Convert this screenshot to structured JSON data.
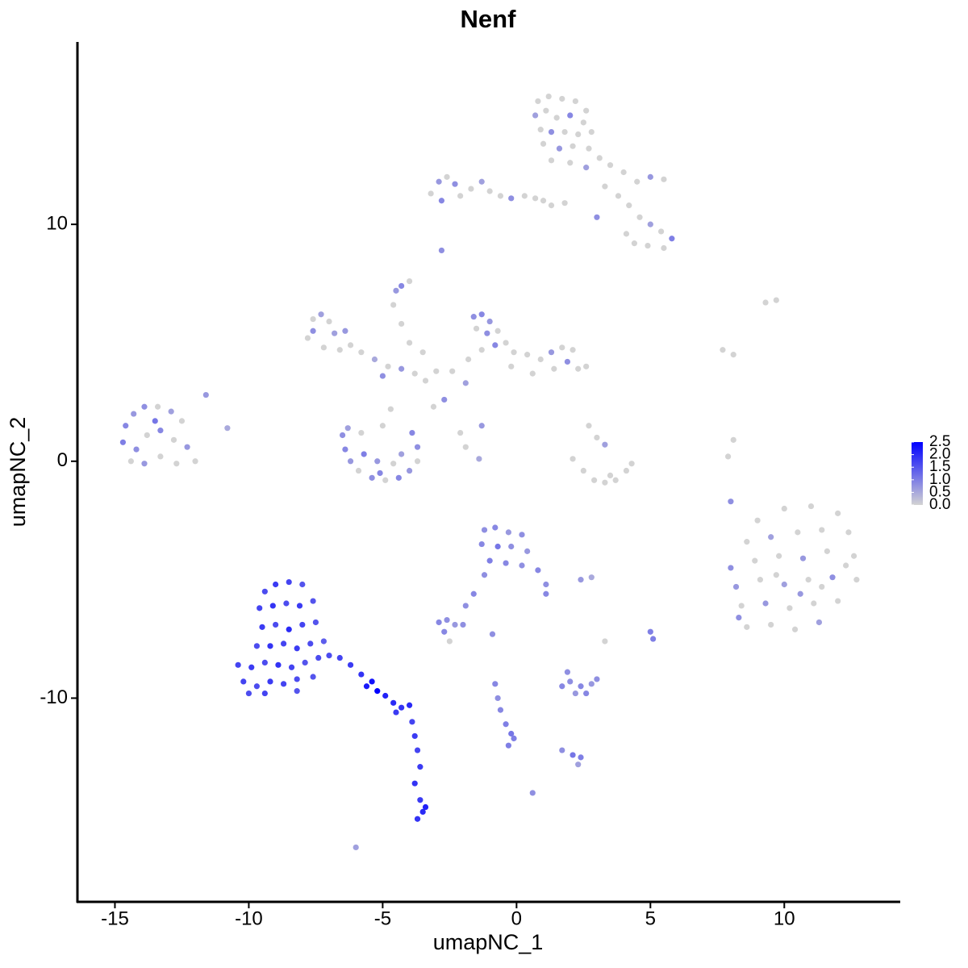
{
  "chart_data": {
    "type": "scatter",
    "title": "Nenf",
    "xlabel": "umapNC_1",
    "ylabel": "umapNC_2",
    "xlim": [
      -16.4,
      14.3
    ],
    "ylim": [
      -18.6,
      17.7
    ],
    "xticks": [
      -15,
      -10,
      -5,
      0,
      5,
      10
    ],
    "yticks": [
      -10,
      0,
      10
    ],
    "point_fields": [
      "x",
      "y",
      "expression"
    ],
    "color_scale": {
      "low": "#d3d3d3",
      "high": "#0000ff",
      "lim": [
        0,
        2.5
      ],
      "ticks": [
        {
          "value": 0,
          "label": "0.0"
        },
        0.5,
        {
          "value": 1,
          "label": "1.0"
        },
        1.5,
        {
          "value": 2,
          "label": "2.0"
        },
        2.5
      ]
    },
    "points": [
      [
        0.8,
        15.2,
        0
      ],
      [
        1.2,
        15.4,
        0
      ],
      [
        1.7,
        15.3,
        0
      ],
      [
        2.2,
        15.2,
        0
      ],
      [
        2.6,
        14.8,
        0
      ],
      [
        0.7,
        14.6,
        0.6
      ],
      [
        1.1,
        14.8,
        0
      ],
      [
        1.5,
        14.5,
        0
      ],
      [
        2.0,
        14.6,
        0.9
      ],
      [
        2.5,
        14.3,
        0
      ],
      [
        0.9,
        14.0,
        0
      ],
      [
        1.3,
        13.9,
        0.8
      ],
      [
        1.8,
        13.9,
        0
      ],
      [
        2.3,
        13.8,
        0
      ],
      [
        2.8,
        13.9,
        0
      ],
      [
        1.0,
        13.4,
        0
      ],
      [
        1.6,
        13.2,
        0.7
      ],
      [
        2.1,
        13.3,
        0
      ],
      [
        2.7,
        13.2,
        0
      ],
      [
        3.1,
        12.8,
        0
      ],
      [
        1.3,
        12.7,
        0
      ],
      [
        2.0,
        12.6,
        0
      ],
      [
        2.6,
        12.4,
        0.6
      ],
      [
        3.5,
        12.5,
        0
      ],
      [
        4.0,
        12.2,
        0
      ],
      [
        4.5,
        11.8,
        0
      ],
      [
        5.0,
        12.0,
        0.7
      ],
      [
        5.5,
        11.9,
        0
      ],
      [
        3.3,
        11.6,
        0
      ],
      [
        3.8,
        11.2,
        0
      ],
      [
        4.2,
        10.8,
        0
      ],
      [
        4.6,
        10.3,
        0
      ],
      [
        5.0,
        10.0,
        0.6
      ],
      [
        5.4,
        9.7,
        0
      ],
      [
        5.8,
        9.4,
        1.0
      ],
      [
        4.1,
        9.6,
        0
      ],
      [
        4.4,
        9.2,
        0
      ],
      [
        4.9,
        9.1,
        0
      ],
      [
        5.5,
        9.0,
        0
      ],
      [
        3.0,
        10.3,
        0.8
      ],
      [
        -3.2,
        11.3,
        0
      ],
      [
        -2.9,
        11.8,
        0.7
      ],
      [
        -2.6,
        12.0,
        0
      ],
      [
        -2.3,
        11.7,
        0.8
      ],
      [
        -2.8,
        11.0,
        0.9
      ],
      [
        -2.1,
        11.2,
        0
      ],
      [
        -1.7,
        11.5,
        0
      ],
      [
        -1.3,
        11.8,
        0.6
      ],
      [
        -1.0,
        11.4,
        0
      ],
      [
        -0.6,
        11.2,
        0
      ],
      [
        -0.2,
        11.1,
        0.8
      ],
      [
        0.3,
        11.2,
        0
      ],
      [
        0.7,
        11.1,
        0
      ],
      [
        1.0,
        11.0,
        0
      ],
      [
        1.3,
        10.8,
        0
      ],
      [
        1.8,
        10.9,
        0
      ],
      [
        -2.8,
        8.9,
        0.8
      ],
      [
        -4.3,
        7.4,
        0.9
      ],
      [
        -4.5,
        7.2,
        0.7
      ],
      [
        -4.0,
        7.6,
        0
      ],
      [
        9.3,
        6.7,
        0
      ],
      [
        9.7,
        6.8,
        0
      ],
      [
        7.7,
        4.7,
        0
      ],
      [
        8.1,
        4.5,
        0
      ],
      [
        -11.6,
        2.8,
        0.7
      ],
      [
        -10.8,
        1.4,
        0.5
      ],
      [
        8.1,
        0.9,
        0
      ],
      [
        7.9,
        0.2,
        0
      ],
      [
        8.0,
        -1.7,
        0.8
      ],
      [
        -6.0,
        -16.3,
        0.6
      ],
      [
        0.6,
        -14.0,
        0.8
      ],
      [
        -7.6,
        6.0,
        0
      ],
      [
        -7.3,
        6.2,
        0.6
      ],
      [
        -7.0,
        5.9,
        0
      ],
      [
        -7.6,
        5.5,
        0.8
      ],
      [
        -7.8,
        5.2,
        0
      ],
      [
        -6.8,
        5.4,
        0.6
      ],
      [
        -7.2,
        4.8,
        0
      ],
      [
        -6.6,
        4.7,
        0
      ],
      [
        -6.2,
        4.9,
        0
      ],
      [
        -6.4,
        5.5,
        0.7
      ],
      [
        -5.8,
        4.6,
        0
      ],
      [
        -5.3,
        4.3,
        0.5
      ],
      [
        -4.8,
        4.0,
        0
      ],
      [
        -5.0,
        3.6,
        0.8
      ],
      [
        -4.3,
        3.9,
        0.7
      ],
      [
        -3.8,
        3.7,
        0
      ],
      [
        -3.4,
        3.4,
        0
      ],
      [
        -3.0,
        3.8,
        0
      ],
      [
        -4.6,
        6.6,
        0
      ],
      [
        -4.3,
        5.8,
        0
      ],
      [
        -4.0,
        5.0,
        0
      ],
      [
        -3.5,
        4.6,
        0
      ],
      [
        -1.6,
        6.1,
        0.8
      ],
      [
        -1.3,
        6.2,
        0.9
      ],
      [
        -1.0,
        5.9,
        0.7
      ],
      [
        -1.5,
        5.6,
        0
      ],
      [
        -1.1,
        5.4,
        0.8
      ],
      [
        -0.7,
        5.5,
        0
      ],
      [
        -0.8,
        4.9,
        0.9
      ],
      [
        -0.4,
        5.0,
        0
      ],
      [
        -1.3,
        4.7,
        0
      ],
      [
        -0.1,
        4.6,
        0
      ],
      [
        0.4,
        4.5,
        0
      ],
      [
        0.9,
        4.3,
        0
      ],
      [
        1.3,
        4.6,
        0.7
      ],
      [
        1.7,
        4.8,
        0
      ],
      [
        2.1,
        4.7,
        0
      ],
      [
        1.9,
        4.2,
        0.8
      ],
      [
        2.3,
        3.9,
        0
      ],
      [
        2.6,
        4.0,
        0
      ],
      [
        1.4,
        3.9,
        0
      ],
      [
        0.6,
        3.7,
        0
      ],
      [
        -0.2,
        4.0,
        0
      ],
      [
        -1.8,
        4.3,
        0
      ],
      [
        -2.4,
        3.8,
        0
      ],
      [
        -1.9,
        3.3,
        0.6
      ],
      [
        -2.7,
        2.6,
        0.8
      ],
      [
        -3.1,
        2.3,
        0
      ],
      [
        -2.1,
        1.2,
        0
      ],
      [
        -1.3,
        1.5,
        0.7
      ],
      [
        -1.9,
        0.6,
        0
      ],
      [
        -1.4,
        0.1,
        0.5
      ],
      [
        -6.5,
        1.1,
        0.8
      ],
      [
        -6.4,
        0.5,
        0.9
      ],
      [
        -6.2,
        0.0,
        0.7
      ],
      [
        -6.3,
        1.4,
        0.6
      ],
      [
        -5.9,
        -0.4,
        0
      ],
      [
        -5.4,
        -0.7,
        0.8
      ],
      [
        -4.9,
        -0.8,
        0
      ],
      [
        -4.4,
        -0.7,
        0.9
      ],
      [
        -4.0,
        -0.4,
        0.7
      ],
      [
        -3.7,
        0.0,
        0
      ],
      [
        -3.7,
        0.6,
        0.8
      ],
      [
        -3.9,
        1.2,
        0.9
      ],
      [
        -5.7,
        0.3,
        1.0
      ],
      [
        -5.2,
        0.0,
        0.7
      ],
      [
        -4.6,
        -0.1,
        0
      ],
      [
        -5.1,
        -0.5,
        0.9
      ],
      [
        -4.3,
        0.3,
        0.6
      ],
      [
        -5.8,
        1.2,
        0
      ],
      [
        -5.0,
        1.5,
        0
      ],
      [
        -4.7,
        2.2,
        0
      ],
      [
        -14.6,
        1.5,
        0.9
      ],
      [
        -14.3,
        2.0,
        0.7
      ],
      [
        -13.9,
        2.3,
        0.8
      ],
      [
        -13.4,
        2.3,
        0
      ],
      [
        -12.9,
        2.1,
        0.6
      ],
      [
        -12.5,
        1.7,
        0
      ],
      [
        -14.7,
        0.8,
        1.0
      ],
      [
        -14.2,
        0.5,
        0.8
      ],
      [
        -13.8,
        1.1,
        0
      ],
      [
        -13.3,
        1.3,
        0.9
      ],
      [
        -12.8,
        0.9,
        0
      ],
      [
        -12.3,
        0.6,
        0.7
      ],
      [
        -14.4,
        0.0,
        0
      ],
      [
        -13.9,
        -0.1,
        0.7
      ],
      [
        -13.3,
        0.2,
        0
      ],
      [
        -12.7,
        -0.1,
        0
      ],
      [
        -12.0,
        0.0,
        0
      ],
      [
        -13.5,
        1.7,
        1.1
      ],
      [
        2.1,
        0.1,
        0
      ],
      [
        2.5,
        -0.4,
        0
      ],
      [
        2.9,
        -0.8,
        0
      ],
      [
        3.3,
        -0.9,
        0
      ],
      [
        3.7,
        -0.8,
        0
      ],
      [
        4.1,
        -0.4,
        0
      ],
      [
        4.3,
        -0.1,
        0
      ],
      [
        3.0,
        1.0,
        0
      ],
      [
        3.3,
        0.7,
        0.6
      ],
      [
        2.7,
        1.5,
        0
      ],
      [
        3.5,
        -0.6,
        0
      ],
      [
        9.0,
        -2.5,
        0
      ],
      [
        10.0,
        -2.0,
        0
      ],
      [
        11.0,
        -1.9,
        0
      ],
      [
        12.0,
        -2.2,
        0
      ],
      [
        8.6,
        -3.4,
        0
      ],
      [
        9.5,
        -3.2,
        0.6
      ],
      [
        10.5,
        -3.0,
        0
      ],
      [
        11.4,
        -2.9,
        0
      ],
      [
        12.4,
        -3.0,
        0
      ],
      [
        8.0,
        -4.5,
        0.8
      ],
      [
        8.9,
        -4.2,
        0
      ],
      [
        9.8,
        -4.0,
        0
      ],
      [
        10.7,
        -4.1,
        0.7
      ],
      [
        11.6,
        -3.8,
        0
      ],
      [
        12.6,
        -4.0,
        0
      ],
      [
        8.2,
        -5.3,
        0.7
      ],
      [
        9.1,
        -5.0,
        0
      ],
      [
        10.0,
        -5.2,
        0.6
      ],
      [
        10.9,
        -5.0,
        0
      ],
      [
        11.8,
        -4.9,
        0.8
      ],
      [
        12.7,
        -5.0,
        0
      ],
      [
        8.4,
        -6.1,
        0
      ],
      [
        9.3,
        -6.0,
        0.7
      ],
      [
        10.2,
        -6.2,
        0
      ],
      [
        11.1,
        -6.0,
        0
      ],
      [
        12.0,
        -5.9,
        0
      ],
      [
        8.6,
        -7.0,
        0
      ],
      [
        9.5,
        -6.9,
        0
      ],
      [
        10.4,
        -7.1,
        0
      ],
      [
        11.3,
        -6.8,
        0.6
      ],
      [
        8.3,
        -6.6,
        0.8
      ],
      [
        9.7,
        -4.8,
        0
      ],
      [
        10.6,
        -5.6,
        0.7
      ],
      [
        11.4,
        -5.3,
        0
      ],
      [
        12.3,
        -4.4,
        0
      ],
      [
        -1.2,
        -2.9,
        0.8
      ],
      [
        -0.8,
        -2.8,
        0.9
      ],
      [
        -0.3,
        -3.0,
        0.7
      ],
      [
        0.2,
        -3.1,
        0.8
      ],
      [
        -1.3,
        -3.5,
        0.9
      ],
      [
        -0.7,
        -3.6,
        1.1
      ],
      [
        -0.2,
        -3.6,
        0.8
      ],
      [
        0.4,
        -3.8,
        0.7
      ],
      [
        -1.0,
        -4.2,
        1.0
      ],
      [
        -0.4,
        -4.3,
        0.9
      ],
      [
        0.2,
        -4.4,
        0.8
      ],
      [
        0.8,
        -4.6,
        0.9
      ],
      [
        1.1,
        -5.2,
        0.8
      ],
      [
        1.1,
        -5.6,
        0.9
      ],
      [
        -1.2,
        -4.8,
        0.8
      ],
      [
        -1.6,
        -5.6,
        0.9
      ],
      [
        -1.9,
        -6.1,
        0.8
      ],
      [
        -2.9,
        -6.8,
        0.9
      ],
      [
        -2.6,
        -6.7,
        0.8
      ],
      [
        -2.3,
        -6.9,
        0.7
      ],
      [
        -2.0,
        -6.9,
        0.8
      ],
      [
        -2.7,
        -7.2,
        0.9
      ],
      [
        -2.5,
        -7.6,
        0
      ],
      [
        -0.9,
        -7.3,
        0.8
      ],
      [
        2.4,
        -5.0,
        0.7
      ],
      [
        2.8,
        -4.9,
        0.5
      ],
      [
        3.3,
        -7.6,
        0
      ],
      [
        5.0,
        -7.2,
        1.0
      ],
      [
        5.1,
        -7.5,
        1.0
      ],
      [
        1.7,
        -9.5,
        0.9
      ],
      [
        2.0,
        -9.3,
        0.8
      ],
      [
        2.4,
        -9.5,
        0.9
      ],
      [
        2.8,
        -9.4,
        0.7
      ],
      [
        3.0,
        -9.2,
        0.8
      ],
      [
        2.2,
        -9.8,
        0.7
      ],
      [
        2.6,
        -9.8,
        0.9
      ],
      [
        1.9,
        -8.9,
        0.8
      ],
      [
        -0.8,
        -9.4,
        0.9
      ],
      [
        -0.7,
        -10.0,
        0.8
      ],
      [
        -0.6,
        -10.5,
        0.9
      ],
      [
        -0.4,
        -11.1,
        1.0
      ],
      [
        -0.2,
        -11.5,
        1.1
      ],
      [
        -0.3,
        -12.0,
        1.0
      ],
      [
        -0.1,
        -11.7,
        1.0
      ],
      [
        1.7,
        -12.2,
        0.8
      ],
      [
        2.1,
        -12.4,
        1.1
      ],
      [
        2.4,
        -12.5,
        1.0
      ],
      [
        2.3,
        -12.8,
        0.6
      ],
      [
        -9.4,
        -5.5,
        1.6
      ],
      [
        -9.0,
        -5.2,
        1.8
      ],
      [
        -8.5,
        -5.1,
        1.7
      ],
      [
        -8.0,
        -5.2,
        1.5
      ],
      [
        -9.6,
        -6.2,
        1.7
      ],
      [
        -9.1,
        -6.1,
        1.9
      ],
      [
        -8.6,
        -6.0,
        1.6
      ],
      [
        -8.1,
        -6.1,
        1.8
      ],
      [
        -7.6,
        -5.9,
        1.5
      ],
      [
        -9.5,
        -7.0,
        1.8
      ],
      [
        -9.0,
        -6.9,
        1.6
      ],
      [
        -8.5,
        -7.1,
        2.0
      ],
      [
        -8.0,
        -6.9,
        1.7
      ],
      [
        -7.5,
        -6.8,
        1.5
      ],
      [
        -9.7,
        -7.8,
        1.6
      ],
      [
        -9.2,
        -7.8,
        1.9
      ],
      [
        -8.7,
        -7.7,
        1.7
      ],
      [
        -8.2,
        -7.9,
        1.8
      ],
      [
        -7.7,
        -7.7,
        1.6
      ],
      [
        -7.2,
        -7.6,
        1.4
      ],
      [
        -10.4,
        -8.6,
        1.7
      ],
      [
        -9.9,
        -8.7,
        1.8
      ],
      [
        -9.4,
        -8.5,
        1.6
      ],
      [
        -8.9,
        -8.6,
        1.9
      ],
      [
        -8.4,
        -8.7,
        1.7
      ],
      [
        -7.9,
        -8.5,
        1.5
      ],
      [
        -7.4,
        -8.3,
        1.6
      ],
      [
        -10.2,
        -9.3,
        1.7
      ],
      [
        -9.7,
        -9.5,
        1.6
      ],
      [
        -9.2,
        -9.3,
        1.8
      ],
      [
        -8.7,
        -9.4,
        1.7
      ],
      [
        -8.2,
        -9.2,
        1.6
      ],
      [
        -7.6,
        -9.1,
        1.5
      ],
      [
        -10.0,
        -9.8,
        1.6
      ],
      [
        -9.4,
        -9.8,
        1.7
      ],
      [
        -8.2,
        -9.7,
        1.5
      ],
      [
        -7.0,
        -8.2,
        1.6
      ],
      [
        -6.6,
        -8.3,
        1.7
      ],
      [
        -6.2,
        -8.6,
        1.8
      ],
      [
        -5.8,
        -9.0,
        1.9
      ],
      [
        -5.4,
        -9.3,
        2.3
      ],
      [
        -5.2,
        -9.7,
        2.5
      ],
      [
        -4.9,
        -9.9,
        2.1
      ],
      [
        -4.6,
        -10.2,
        2.0
      ],
      [
        -4.3,
        -10.4,
        1.9
      ],
      [
        -4.0,
        -10.3,
        2.0
      ],
      [
        -4.5,
        -10.6,
        1.8
      ],
      [
        -5.6,
        -9.5,
        2.2
      ],
      [
        -3.9,
        -11.0,
        1.7
      ],
      [
        -3.8,
        -11.6,
        1.8
      ],
      [
        -3.7,
        -12.2,
        1.7
      ],
      [
        -3.6,
        -12.9,
        1.8
      ],
      [
        -3.8,
        -13.6,
        1.9
      ],
      [
        -3.6,
        -14.3,
        1.8
      ],
      [
        -3.5,
        -14.8,
        2.0
      ],
      [
        -3.7,
        -15.1,
        1.9
      ],
      [
        -3.4,
        -14.6,
        2.1
      ]
    ]
  }
}
